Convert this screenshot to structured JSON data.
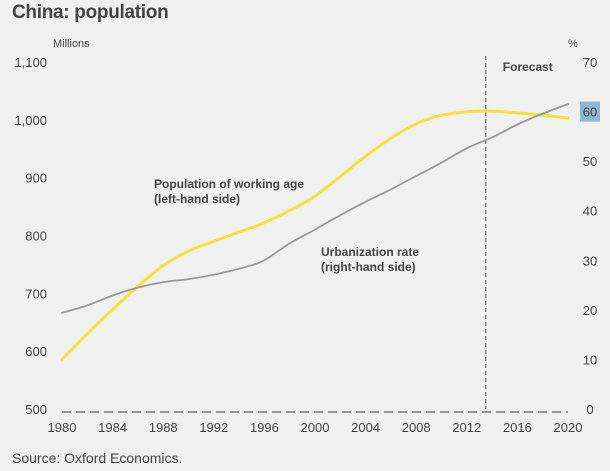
{
  "title": "China: population",
  "source": "Source: Oxford Economics.",
  "chart_data": {
    "type": "line",
    "title": "China: population",
    "left_axis": {
      "label": "Millions",
      "min": 500,
      "max": 1100,
      "ticks": [
        "500",
        "600",
        "700",
        "800",
        "900",
        "1,000",
        "1,100"
      ],
      "tick_values": [
        500,
        600,
        700,
        800,
        900,
        1000,
        1100
      ]
    },
    "right_axis": {
      "label": "%",
      "min": 0,
      "max": 70,
      "ticks": [
        "0",
        "10",
        "20",
        "30",
        "40",
        "50",
        "60",
        "70"
      ],
      "tick_values": [
        0,
        10,
        20,
        30,
        40,
        50,
        60,
        70
      ],
      "highlight_tick": "60"
    },
    "x_axis": {
      "min": 1980,
      "max": 2020,
      "ticks": [
        "1980",
        "1984",
        "1988",
        "1992",
        "1996",
        "2000",
        "2004",
        "2008",
        "2012",
        "2016",
        "2020"
      ],
      "tick_values": [
        1980,
        1984,
        1988,
        1992,
        1996,
        2000,
        2004,
        2008,
        2012,
        2016,
        2020
      ]
    },
    "grid": false,
    "forecast": {
      "label": "Forecast",
      "x": 2013.5
    },
    "series": [
      {
        "name": "Population of working age",
        "axis": "left",
        "color": "#f5e13c",
        "x": [
          1980,
          1982,
          1984,
          1986,
          1988,
          1990,
          1992,
          1994,
          1996,
          1998,
          2000,
          2002,
          2004,
          2006,
          2008,
          2010,
          2012,
          2014,
          2016,
          2018,
          2020
        ],
        "values": [
          586,
          630,
          672,
          712,
          748,
          773,
          790,
          806,
          822,
          843,
          868,
          902,
          937,
          968,
          993,
          1008,
          1014,
          1015,
          1012,
          1008,
          1003
        ]
      },
      {
        "name": "Urbanization rate",
        "axis": "right",
        "color": "#999999",
        "x": [
          1980,
          1982,
          1984,
          1986,
          1988,
          1990,
          1992,
          1994,
          1995,
          1996,
          1998,
          2000,
          2002,
          2004,
          2006,
          2008,
          2010,
          2012,
          2014,
          2016,
          2018,
          2020
        ],
        "values": [
          19.4,
          20.9,
          22.9,
          24.5,
          25.6,
          26.2,
          27.1,
          28.3,
          29.0,
          30.0,
          33.4,
          36.2,
          39.1,
          41.8,
          44.3,
          47.0,
          49.7,
          52.6,
          54.8,
          57.4,
          59.6,
          61.5
        ]
      }
    ],
    "annotations": [
      {
        "series": "Population of working age",
        "lines": [
          "Population of working age",
          "(left-hand side)"
        ]
      },
      {
        "series": "Urbanization rate",
        "lines": [
          "Urbanization rate",
          "(right-hand side)"
        ]
      }
    ]
  }
}
